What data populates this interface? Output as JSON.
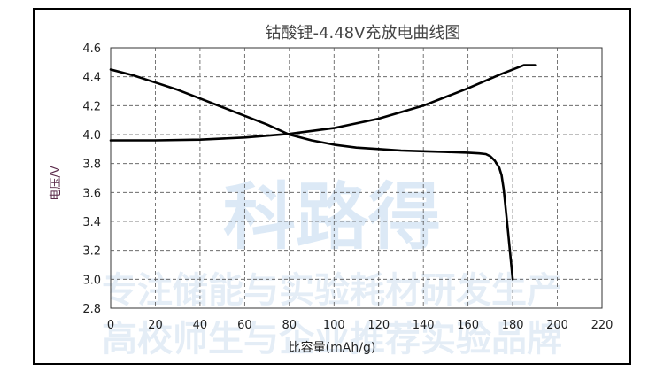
{
  "watermark": {
    "logo_text": "科路得",
    "line1": "专注储能与实验耗材研发生产",
    "line2": "高校师生与企业推荐实验品牌",
    "color": "#9ec3e6"
  },
  "chart_data": {
    "type": "line",
    "title": "钴酸锂-4.48V充放电曲线图",
    "xlabel": "比容量(mAh/g)",
    "ylabel": "电压/V",
    "xlim": [
      0,
      220
    ],
    "ylim": [
      2.8,
      4.6
    ],
    "xticks": [
      0,
      20,
      40,
      60,
      80,
      100,
      120,
      140,
      160,
      180,
      200,
      220
    ],
    "yticks": [
      2.8,
      3.0,
      3.2,
      3.4,
      3.6,
      3.8,
      4.0,
      4.2,
      4.4,
      4.6
    ],
    "ytick_labels": [
      "2.8",
      "3.0",
      "3.2",
      "3.4",
      "3.6",
      "3.8",
      "4.0",
      "4.2",
      "4.4",
      "4.6"
    ],
    "grid": true,
    "grid_style": "dashed",
    "line_color": "#000000",
    "series": [
      {
        "x": [
          0,
          20,
          40,
          60,
          80,
          100,
          120,
          140,
          160,
          175,
          185,
          190
        ],
        "y": [
          3.96,
          3.96,
          3.965,
          3.98,
          4.005,
          4.045,
          4.11,
          4.2,
          4.32,
          4.42,
          4.48,
          4.48
        ]
      },
      {
        "x": [
          0,
          10,
          20,
          30,
          40,
          50,
          60,
          70,
          80,
          90,
          100,
          110,
          120,
          130,
          140,
          150,
          160,
          165,
          168,
          170,
          172,
          174,
          175,
          176,
          178,
          180
        ],
        "y": [
          4.45,
          4.41,
          4.36,
          4.31,
          4.25,
          4.19,
          4.13,
          4.07,
          4.0,
          3.96,
          3.93,
          3.91,
          3.9,
          3.89,
          3.885,
          3.88,
          3.875,
          3.87,
          3.865,
          3.85,
          3.82,
          3.77,
          3.72,
          3.62,
          3.32,
          3.0
        ]
      }
    ]
  }
}
